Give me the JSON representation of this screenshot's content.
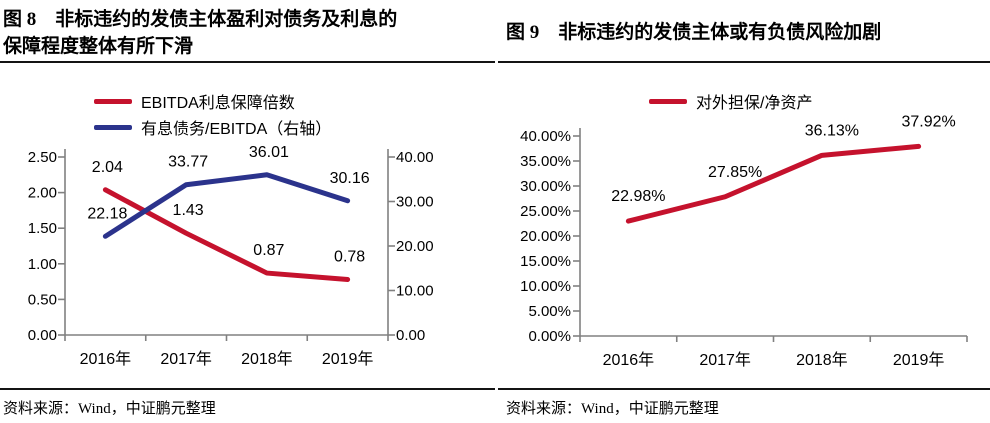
{
  "figure8": {
    "title_line1": "图 8　非标违约的发债主体盈利对债务及利息的",
    "title_line2": "保障程度整体有所下滑",
    "source": "资料来源：Wind，中证鹏元整理"
  },
  "figure9": {
    "title": "图 9　非标违约的发债主体或有负债风险加剧",
    "source": "资料来源：Wind，中证鹏元整理"
  },
  "colors": {
    "series_red": "#c5122d",
    "series_navy": "#2b338c",
    "axis_line": "#808080",
    "rule_black": "#141414"
  },
  "chart_data": [
    {
      "id": "figure8",
      "type": "line",
      "title": "非标违约的发债主体盈利对债务及利息的保障程度整体有所下滑",
      "categories": [
        "2016年",
        "2017年",
        "2018年",
        "2019年"
      ],
      "series": [
        {
          "name": "EBITDA利息保障倍数",
          "axis": "left",
          "color": "#c5122d",
          "values": [
            2.04,
            1.43,
            0.87,
            0.78
          ],
          "point_labels": [
            "2.04",
            "1.43",
            "0.87",
            "0.78"
          ]
        },
        {
          "name": "有息债务/EBITDA（右轴）",
          "axis": "right",
          "color": "#2b338c",
          "values": [
            22.18,
            33.77,
            36.01,
            30.16
          ],
          "point_labels": [
            "22.18",
            "33.77",
            "36.01",
            "30.16"
          ]
        }
      ],
      "left_axis": {
        "min": 0,
        "max": 2.5,
        "tick_values": [
          2.5,
          2.0,
          1.5,
          1.0,
          0.5,
          0
        ],
        "tick_labels": [
          "2.50",
          "2.00",
          "1.50",
          "1.00",
          "0.50",
          "0.00"
        ]
      },
      "right_axis": {
        "min": 0,
        "max": 40,
        "tick_values": [
          40,
          30,
          20,
          10,
          0
        ],
        "tick_labels": [
          "40.00",
          "30.00",
          "20.00",
          "10.00",
          "0.00"
        ]
      },
      "grid": false,
      "legend_position": "top-left"
    },
    {
      "id": "figure9",
      "type": "line",
      "title": "非标违约的发债主体或有负债风险加剧",
      "categories": [
        "2016年",
        "2017年",
        "2018年",
        "2019年"
      ],
      "series": [
        {
          "name": "对外担保/净资产",
          "axis": "left",
          "color": "#c5122d",
          "values": [
            22.98,
            27.85,
            36.13,
            37.92
          ],
          "point_labels": [
            "22.98%",
            "27.85%",
            "36.13%",
            "37.92%"
          ]
        }
      ],
      "left_axis": {
        "min": 0,
        "max": 40,
        "tick_values": [
          40,
          35,
          30,
          25,
          20,
          15,
          10,
          5,
          0
        ],
        "tick_labels": [
          "40.00%",
          "35.00%",
          "30.00%",
          "25.00%",
          "20.00%",
          "15.00%",
          "10.00%",
          "5.00%",
          "0.00%"
        ]
      },
      "grid": false,
      "legend_position": "top-center"
    }
  ]
}
